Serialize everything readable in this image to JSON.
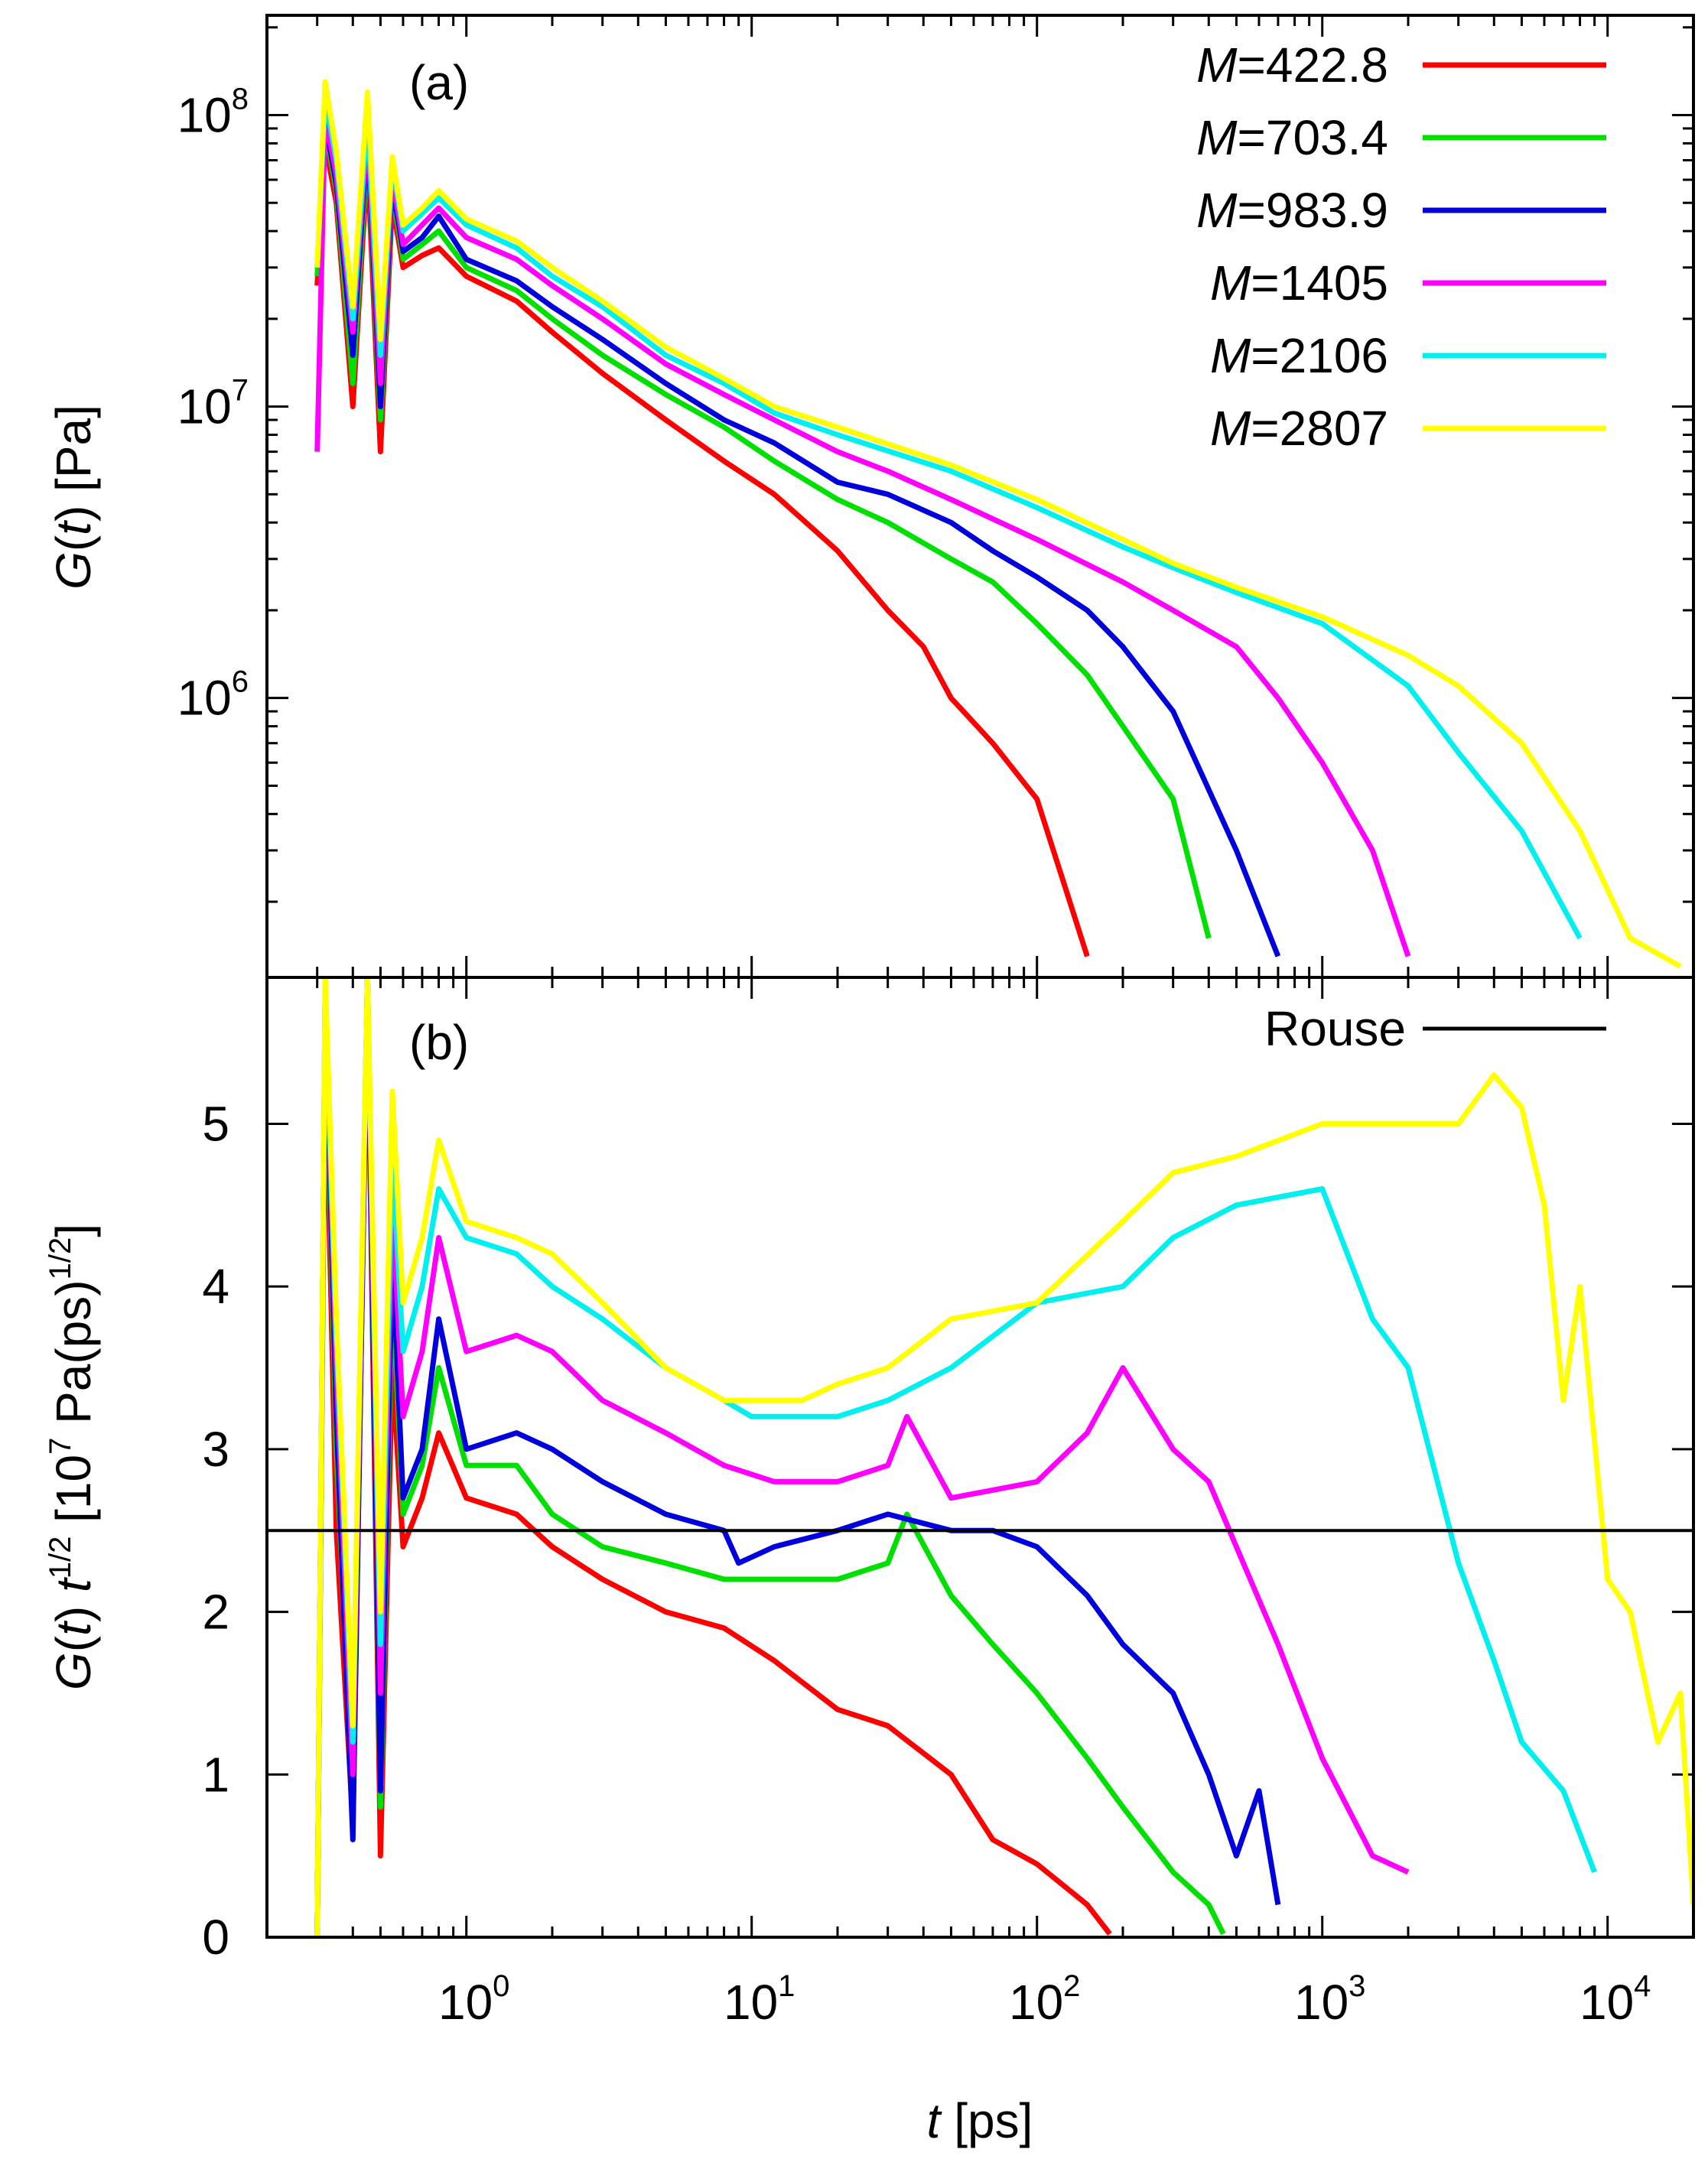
{
  "chart_data": [
    {
      "panel_label": "(a)",
      "type": "line",
      "xscale": "log",
      "yscale": "log",
      "xlim": [
        0.2,
        20000
      ],
      "ylim": [
        110000,
        220000000
      ],
      "ylabel": {
        "func": "G",
        "var": "t",
        "unit": " [Pa]"
      },
      "yticks": [
        {
          "base": "10",
          "exp": "6",
          "value": 1000000
        },
        {
          "base": "10",
          "exp": "7",
          "value": 10000000
        },
        {
          "base": "10",
          "exp": "8",
          "value": 100000000
        }
      ],
      "legend_position": "top-right",
      "series": [
        {
          "name": "M=422.8",
          "legend_var": "M",
          "legend_val": "=422.8",
          "color": "#ff0000",
          "x": [
            0.3,
            0.32,
            0.35,
            0.4,
            0.45,
            0.5,
            0.55,
            0.6,
            0.7,
            0.8,
            1,
            1.5,
            2,
            3,
            5,
            8,
            12,
            20,
            30,
            40,
            50,
            70,
            100,
            150
          ],
          "y": [
            26000000,
            80000000,
            50000000,
            10000000,
            70000000,
            7000000,
            50000000,
            30000000,
            33000000,
            35000000,
            28000000,
            23000000,
            18000000,
            13000000,
            9000000,
            6500000,
            5000000,
            3200000,
            2000000,
            1500000,
            1000000,
            700000,
            450000,
            130000
          ]
        },
        {
          "name": "M=703.4",
          "legend_var": "M",
          "legend_val": "=703.4",
          "color": "#00e000",
          "x": [
            0.3,
            0.32,
            0.35,
            0.4,
            0.45,
            0.5,
            0.55,
            0.6,
            0.7,
            0.8,
            1,
            1.5,
            2,
            3,
            5,
            8,
            12,
            20,
            30,
            50,
            70,
            100,
            150,
            200,
            300,
            400
          ],
          "y": [
            28000000,
            90000000,
            55000000,
            12000000,
            80000000,
            9000000,
            55000000,
            32000000,
            36000000,
            40000000,
            30000000,
            25000000,
            20000000,
            15000000,
            11000000,
            8500000,
            6500000,
            4800000,
            4000000,
            3000000,
            2500000,
            1800000,
            1200000,
            800000,
            450000,
            150000
          ]
        },
        {
          "name": "M=983.9",
          "legend_var": "M",
          "legend_val": "=983.9",
          "color": "#0000dd",
          "x": [
            0.3,
            0.32,
            0.35,
            0.4,
            0.45,
            0.5,
            0.55,
            0.6,
            0.7,
            0.8,
            1,
            1.5,
            2,
            3,
            5,
            8,
            12,
            20,
            30,
            50,
            70,
            100,
            150,
            200,
            300,
            500,
            700
          ],
          "y": [
            30000000,
            95000000,
            58000000,
            15000000,
            85000000,
            10000000,
            58000000,
            34000000,
            38000000,
            45000000,
            32000000,
            27000000,
            22000000,
            17000000,
            12000000,
            9000000,
            7500000,
            5500000,
            5000000,
            4000000,
            3200000,
            2600000,
            2000000,
            1500000,
            900000,
            300000,
            130000
          ]
        },
        {
          "name": "M=1405",
          "legend_var": "M",
          "legend_val": "=1405",
          "color": "#ff00ff",
          "x": [
            0.3,
            0.32,
            0.35,
            0.4,
            0.45,
            0.5,
            0.55,
            0.6,
            0.7,
            0.8,
            1,
            1.5,
            2,
            3,
            5,
            8,
            12,
            20,
            30,
            50,
            100,
            200,
            300,
            500,
            700,
            1000,
            1500,
            2000
          ],
          "y": [
            7000000,
            100000000,
            62000000,
            18000000,
            90000000,
            12000000,
            62000000,
            36000000,
            42000000,
            48000000,
            38000000,
            32000000,
            26000000,
            20000000,
            14000000,
            11000000,
            9000000,
            7000000,
            6000000,
            4800000,
            3500000,
            2500000,
            2000000,
            1500000,
            1000000,
            600000,
            300000,
            130000
          ]
        },
        {
          "name": "M=2106",
          "legend_var": "M",
          "legend_val": "=2106",
          "color": "#00f0f0",
          "x": [
            0.3,
            0.32,
            0.35,
            0.4,
            0.45,
            0.5,
            0.55,
            0.6,
            0.7,
            0.8,
            1,
            1.5,
            2,
            3,
            5,
            8,
            12,
            20,
            50,
            100,
            200,
            300,
            500,
            1000,
            2000,
            3000,
            5000,
            8000
          ],
          "y": [
            30000000,
            115000000,
            70000000,
            20000000,
            100000000,
            15000000,
            68000000,
            40000000,
            46000000,
            52000000,
            42000000,
            35000000,
            28000000,
            22000000,
            15000000,
            12000000,
            9500000,
            8000000,
            6000000,
            4500000,
            3300000,
            2800000,
            2300000,
            1800000,
            1100000,
            650000,
            350000,
            150000
          ]
        },
        {
          "name": "M=2807",
          "legend_var": "M",
          "legend_val": "=2807",
          "color": "#ffff00",
          "x": [
            0.3,
            0.32,
            0.35,
            0.4,
            0.45,
            0.5,
            0.55,
            0.6,
            0.7,
            0.8,
            1,
            1.5,
            2,
            3,
            5,
            8,
            12,
            20,
            50,
            100,
            200,
            300,
            500,
            1000,
            2000,
            3000,
            5000,
            8000,
            12000,
            18000
          ],
          "y": [
            30000000,
            130000000,
            75000000,
            22000000,
            120000000,
            17000000,
            72000000,
            42000000,
            48000000,
            55000000,
            44000000,
            37000000,
            30000000,
            23000000,
            16000000,
            12500000,
            10000000,
            8500000,
            6300000,
            4800000,
            3500000,
            2900000,
            2400000,
            1900000,
            1400000,
            1100000,
            700000,
            350000,
            150000,
            120000
          ]
        }
      ]
    },
    {
      "panel_label": "(b)",
      "type": "line",
      "xscale": "log",
      "yscale": "linear",
      "xlim": [
        0.2,
        20000
      ],
      "ylim": [
        0,
        5.9
      ],
      "xlabel": {
        "var": "t",
        "unit": " [ps]"
      },
      "ylabel": {
        "func": "G",
        "var": "t",
        "mult": "t",
        "half": "1/2",
        "bracket_open": "[10",
        "exp": "7",
        "unit": " Pa(ps)",
        "bracket_close": "]"
      },
      "yticks": [
        "0",
        "1",
        "2",
        "3",
        "4",
        "5"
      ],
      "xticks": [
        {
          "base": "10",
          "exp": "0",
          "value": 1
        },
        {
          "base": "10",
          "exp": "1",
          "value": 10
        },
        {
          "base": "10",
          "exp": "2",
          "value": 100
        },
        {
          "base": "10",
          "exp": "3",
          "value": 1000
        },
        {
          "base": "10",
          "exp": "4",
          "value": 10000
        }
      ],
      "legend_position": "top-right",
      "reference": {
        "name": "Rouse",
        "color": "#000000",
        "value": 2.5
      },
      "series": [
        {
          "name": "M=422.8",
          "color": "#ff0000",
          "x": [
            0.3,
            0.32,
            0.35,
            0.4,
            0.45,
            0.5,
            0.55,
            0.6,
            0.7,
            0.8,
            1,
            1.5,
            2,
            3,
            5,
            8,
            12,
            20,
            30,
            50,
            70,
            100,
            150,
            180
          ],
          "y": [
            0,
            5.5,
            2.5,
            0.7,
            5.8,
            0.5,
            3.5,
            2.4,
            2.7,
            3.1,
            2.7,
            2.6,
            2.4,
            2.2,
            2,
            1.9,
            1.7,
            1.4,
            1.3,
            1,
            0.6,
            0.45,
            0.2,
            0.02
          ]
        },
        {
          "name": "M=703.4",
          "color": "#00e000",
          "x": [
            0.3,
            0.32,
            0.35,
            0.4,
            0.45,
            0.5,
            0.55,
            0.6,
            0.7,
            0.8,
            1,
            1.5,
            2,
            3,
            5,
            8,
            12,
            20,
            30,
            35,
            50,
            70,
            100,
            150,
            200,
            300,
            400,
            450
          ],
          "y": [
            0,
            5.7,
            3,
            0.8,
            5.9,
            0.8,
            4,
            2.6,
            2.9,
            3.5,
            2.9,
            2.9,
            2.6,
            2.4,
            2.3,
            2.2,
            2.2,
            2.2,
            2.3,
            2.6,
            2.1,
            1.8,
            1.5,
            1.1,
            0.8,
            0.4,
            0.2,
            0.02
          ]
        },
        {
          "name": "M=983.9",
          "color": "#0000dd",
          "x": [
            0.3,
            0.32,
            0.35,
            0.4,
            0.45,
            0.5,
            0.55,
            0.6,
            0.7,
            0.8,
            1,
            1.5,
            2,
            3,
            5,
            8,
            9,
            12,
            20,
            30,
            50,
            70,
            100,
            150,
            200,
            300,
            400,
            500,
            600,
            700
          ],
          "y": [
            0,
            5.8,
            3.2,
            0.6,
            5.9,
            0.9,
            4.2,
            2.7,
            3,
            3.8,
            3,
            3.1,
            3,
            2.8,
            2.6,
            2.5,
            2.3,
            2.4,
            2.5,
            2.6,
            2.5,
            2.5,
            2.4,
            2.1,
            1.8,
            1.5,
            1,
            0.5,
            0.9,
            0.2
          ]
        },
        {
          "name": "M=1405",
          "color": "#ff00ff",
          "x": [
            0.3,
            0.32,
            0.35,
            0.4,
            0.45,
            0.5,
            0.55,
            0.6,
            0.7,
            0.8,
            1,
            1.5,
            2,
            3,
            5,
            8,
            12,
            20,
            30,
            35,
            50,
            100,
            150,
            200,
            300,
            400,
            500,
            700,
            1000,
            1500,
            2000
          ],
          "y": [
            0,
            5.8,
            3.5,
            1,
            5.9,
            1.5,
            4.5,
            3.2,
            3.6,
            4.3,
            3.6,
            3.7,
            3.6,
            3.3,
            3.1,
            2.9,
            2.8,
            2.8,
            2.9,
            3.2,
            2.7,
            2.8,
            3.1,
            3.5,
            3,
            2.8,
            2.4,
            1.8,
            1.1,
            0.5,
            0.4
          ]
        },
        {
          "name": "M=2106",
          "color": "#00f0f0",
          "x": [
            0.3,
            0.32,
            0.35,
            0.4,
            0.45,
            0.5,
            0.55,
            0.6,
            0.7,
            0.8,
            1,
            1.5,
            2,
            3,
            5,
            8,
            10,
            15,
            20,
            30,
            50,
            100,
            200,
            300,
            500,
            1000,
            1500,
            2000,
            3000,
            4000,
            5000,
            7000,
            9000
          ],
          "y": [
            0,
            5.8,
            3.7,
            1.2,
            5.9,
            1.8,
            4.8,
            3.6,
            4,
            4.6,
            4.3,
            4.2,
            4,
            3.8,
            3.5,
            3.3,
            3.2,
            3.2,
            3.2,
            3.3,
            3.5,
            3.9,
            4,
            4.3,
            4.5,
            4.6,
            3.8,
            3.5,
            2.3,
            1.7,
            1.2,
            0.9,
            0.4
          ]
        },
        {
          "name": "M=2807",
          "color": "#ffff00",
          "x": [
            0.3,
            0.32,
            0.35,
            0.4,
            0.45,
            0.5,
            0.55,
            0.6,
            0.7,
            0.8,
            1,
            1.5,
            2,
            3,
            5,
            8,
            10,
            15,
            20,
            30,
            50,
            100,
            200,
            300,
            500,
            1000,
            2000,
            3000,
            4000,
            5000,
            6000,
            7000,
            8000,
            10000,
            12000,
            15000,
            18000,
            20000
          ],
          "y": [
            0,
            5.9,
            3.8,
            1.3,
            5.9,
            2,
            5.2,
            3.9,
            4.3,
            4.9,
            4.4,
            4.3,
            4.2,
            3.9,
            3.5,
            3.3,
            3.3,
            3.3,
            3.4,
            3.5,
            3.8,
            3.9,
            4.4,
            4.7,
            4.8,
            5,
            5,
            5,
            5.3,
            5.1,
            4.5,
            3.3,
            4,
            2.2,
            2,
            1.2,
            1.5,
            0.2
          ]
        }
      ]
    }
  ]
}
